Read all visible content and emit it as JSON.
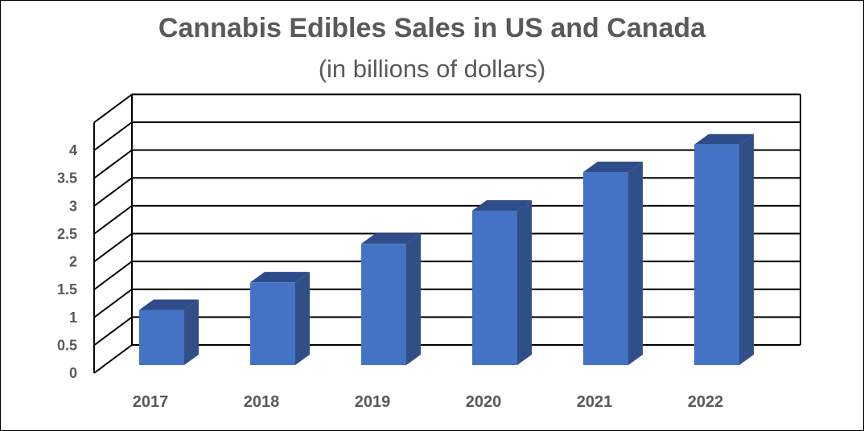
{
  "chart_data": {
    "type": "bar",
    "title": "Cannabis Edibles Sales in US and Canada",
    "subtitle": "(in billions of dollars)",
    "xlabel": "",
    "ylabel": "",
    "categories": [
      "2017",
      "2018",
      "2019",
      "2020",
      "2021",
      "2022"
    ],
    "values": [
      1.0,
      1.5,
      2.2,
      2.8,
      3.5,
      4.0
    ],
    "ylim": [
      0,
      4
    ],
    "yticks": [
      "0",
      "0.5",
      "1",
      "1.5",
      "2",
      "2.5",
      "3",
      "3.5",
      "4"
    ],
    "grid": true,
    "legend": "none",
    "style": "3d-column",
    "colors": {
      "bar_front": "#4472C4",
      "bar_side": "#2F4F86",
      "bar_top": "#2E4C8A",
      "grid": "#000000",
      "text": "#595959"
    }
  }
}
